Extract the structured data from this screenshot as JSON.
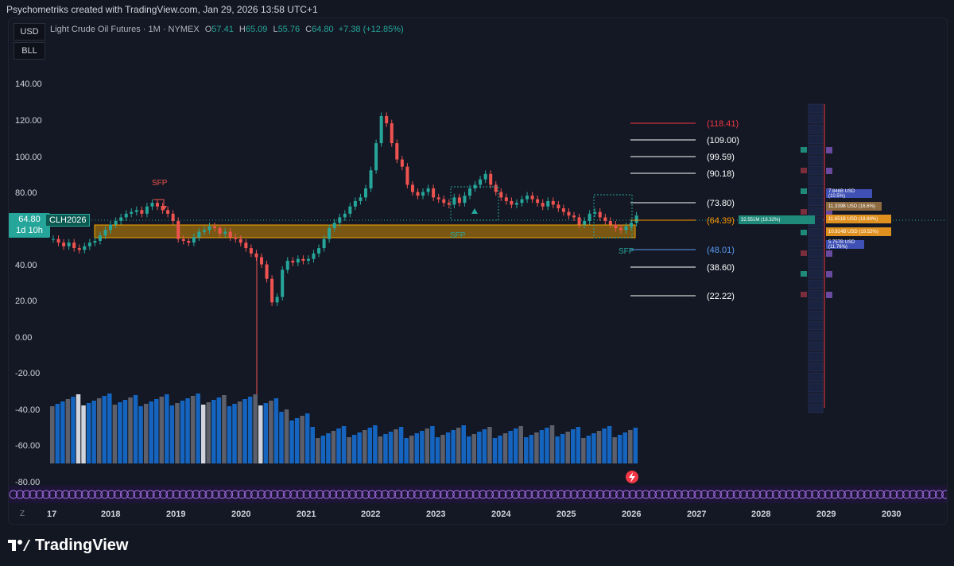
{
  "header": {
    "credit": "Psychometriks created with TradingView.com, Jan 29, 2026 13:58 UTC+1"
  },
  "sidebar": {
    "currency": "USD",
    "unit": "BLL"
  },
  "legend": {
    "title": "Light Crude Oil Futures · 1M · NYMEX",
    "o_label": "O",
    "o": "57.41",
    "h_label": "H",
    "h": "65.09",
    "l_label": "L",
    "l": "55.76",
    "c_label": "C",
    "c": "64.80",
    "change": "+7.38 (+12.85%)"
  },
  "price_scale": {
    "ticks": [
      "140.00",
      "120.00",
      "100.00",
      "80.00",
      "60.00",
      "40.00",
      "20.00",
      "0.00",
      "-20.00",
      "-40.00",
      "-60.00",
      "-80.00"
    ],
    "last_price": "64.80",
    "countdown": "1d 10h",
    "symbol": "CLH2026"
  },
  "time_scale": {
    "ticks": [
      "17",
      "2018",
      "2019",
      "2020",
      "2021",
      "2022",
      "2023",
      "2024",
      "2025",
      "2026",
      "2027",
      "2028",
      "2029",
      "2030"
    ],
    "zoom_btn": "Z"
  },
  "annotations": {
    "sfp_top": "SFP",
    "sfp_zone": "SFP",
    "sfp_low": "SFP"
  },
  "fib_levels": [
    {
      "label": "(118.41)",
      "color": "#f23645"
    },
    {
      "label": "(109.00)",
      "color": "#ffffff"
    },
    {
      "label": "(99.59)",
      "color": "#ffffff"
    },
    {
      "label": "(90.18)",
      "color": "#ffffff"
    },
    {
      "label": "(73.80)",
      "color": "#ffffff"
    },
    {
      "label": "(64.39)",
      "color": "#ff9800"
    },
    {
      "label": "(48.01)",
      "color": "#5b9cf6"
    },
    {
      "label": "(38.60)",
      "color": "#ffffff"
    },
    {
      "label": "(22.22)",
      "color": "#ffffff"
    }
  ],
  "volume_profile": {
    "poc_label": "32.551M (18.32%)",
    "rows": [
      {
        "label": "7.846B USD (10.5%)",
        "color": "#3f51b5"
      },
      {
        "label": "11.339B USD (16.6%)",
        "color": "#ab8050"
      },
      {
        "label": "11.651B USD (18.84%)",
        "color": "#f0a030"
      },
      {
        "label": "10.814B USD (19.52%)",
        "color": "#f0a030"
      },
      {
        "label": "5.757B USD (11.76%)",
        "color": "#3f51b5"
      }
    ]
  },
  "footer": {
    "brand": "TradingView"
  },
  "colors": {
    "background": "#131722",
    "up": "#26a69a",
    "down": "#ef5350",
    "volume_blue": "#1565c0",
    "volume_gray": "#5d606b",
    "zone": "#f7a600"
  }
}
